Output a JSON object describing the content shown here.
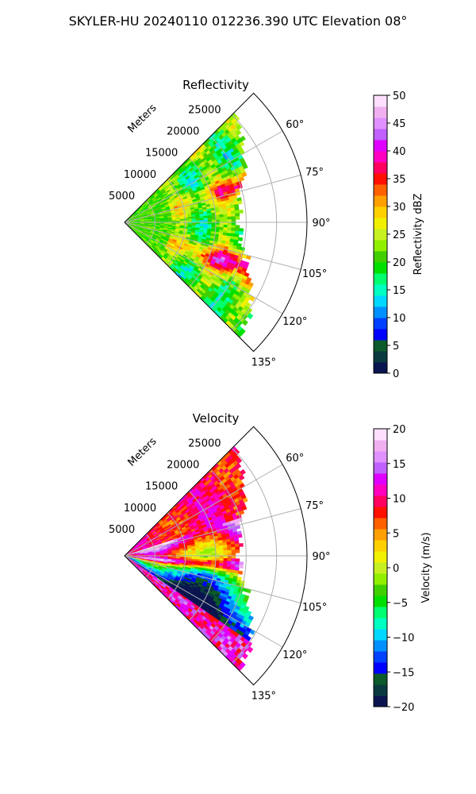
{
  "figure": {
    "suptitle": "SKYLER-HU  20240110  012236.390 UTC Elevation 08°"
  },
  "chart_data": [
    {
      "type": "heatmap",
      "projection": "polar-sector",
      "title": "Reflectivity",
      "radial_axis_label": "Meters",
      "radial_ticks": [
        "5000",
        "10000",
        "15000",
        "20000",
        "25000"
      ],
      "radial_tick_values": [
        5000,
        10000,
        15000,
        20000,
        25000
      ],
      "radial_range": [
        0,
        30000
      ],
      "angle_range_deg": [
        45,
        135
      ],
      "angle_ticks": [
        "60°",
        "75°",
        "90°",
        "105°",
        "120°",
        "135°"
      ],
      "angle_tick_values": [
        60,
        75,
        90,
        105,
        120,
        135
      ],
      "grid": true,
      "colorbar": {
        "label": "Reflectivity dBZ",
        "range": [
          0,
          50
        ],
        "ticks": [
          "0",
          "5",
          "10",
          "15",
          "20",
          "25",
          "30",
          "35",
          "40",
          "45",
          "50"
        ],
        "tick_values": [
          0,
          5,
          10,
          15,
          20,
          25,
          30,
          35,
          40,
          45,
          50
        ],
        "colors": [
          "#0a1550",
          "#0a3a40",
          "#0d5a2a",
          "#0000ff",
          "#0040ff",
          "#0090ff",
          "#00d8ff",
          "#00ffc0",
          "#00ff70",
          "#00e000",
          "#40d000",
          "#90f000",
          "#c8f020",
          "#f0f000",
          "#ffd000",
          "#ffa000",
          "#ff6000",
          "#ff1000",
          "#ff0060",
          "#ff00c0",
          "#e000ff",
          "#c060ff",
          "#e090ff",
          "#f0b0f0",
          "#fde0fd"
        ]
      }
    },
    {
      "type": "heatmap",
      "projection": "polar-sector",
      "title": "Velocity",
      "radial_axis_label": "Meters",
      "radial_ticks": [
        "5000",
        "10000",
        "15000",
        "20000",
        "25000"
      ],
      "radial_tick_values": [
        5000,
        10000,
        15000,
        20000,
        25000
      ],
      "radial_range": [
        0,
        30000
      ],
      "angle_range_deg": [
        45,
        135
      ],
      "angle_ticks": [
        "60°",
        "75°",
        "90°",
        "105°",
        "120°",
        "135°"
      ],
      "angle_tick_values": [
        60,
        75,
        90,
        105,
        120,
        135
      ],
      "grid": true,
      "colorbar": {
        "label": "Velocity (m/s)",
        "range": [
          -20,
          20
        ],
        "ticks": [
          "−20",
          "−15",
          "−10",
          "−5",
          "0",
          "5",
          "10",
          "15",
          "20"
        ],
        "tick_values": [
          -20,
          -15,
          -10,
          -5,
          0,
          5,
          10,
          15,
          20
        ],
        "colors": [
          "#0a1550",
          "#0a3a40",
          "#0d5a2a",
          "#0000ff",
          "#0040ff",
          "#0090ff",
          "#00d8ff",
          "#00ffc0",
          "#00ff70",
          "#00e000",
          "#40d000",
          "#90f000",
          "#c8f020",
          "#f0f000",
          "#ffd000",
          "#ffa000",
          "#ff6000",
          "#ff1000",
          "#ff0060",
          "#ff00c0",
          "#e000ff",
          "#c060ff",
          "#e090ff",
          "#f0b0f0",
          "#fde0fd"
        ]
      }
    }
  ]
}
